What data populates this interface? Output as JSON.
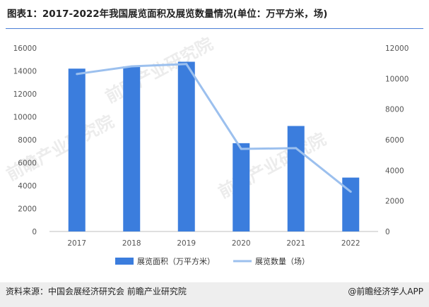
{
  "title": "图表1：2017-2022年我国展览面积及展览数量情况(单位：万平方米，场)",
  "footer": {
    "source": "资料来源：中国会展经济研究会 前瞻产业研究院",
    "brand": "@前瞻经济学人APP"
  },
  "watermark": "前瞻产业研究院",
  "colors": {
    "bar": "#3b7ddd",
    "line": "#9cc0ee",
    "rule": "#4a7fd6",
    "footer_bg": "#eeeeee"
  },
  "chart_data": {
    "type": "bar",
    "categories": [
      "2017",
      "2018",
      "2019",
      "2020",
      "2021",
      "2022"
    ],
    "series": [
      {
        "name": "展览面积（万平方米）",
        "type": "bar",
        "axis": "left",
        "values": [
          14200,
          14400,
          14800,
          7700,
          9200,
          4700
        ]
      },
      {
        "name": "展览数量（场）",
        "type": "line",
        "axis": "right",
        "values": [
          10300,
          10800,
          10950,
          5400,
          5450,
          2600
        ]
      }
    ],
    "y_left": {
      "min": 0,
      "max": 16000,
      "ticks": [
        0,
        2000,
        4000,
        6000,
        8000,
        10000,
        12000,
        14000,
        16000
      ]
    },
    "y_right": {
      "min": 0,
      "max": 12000,
      "ticks": [
        0,
        2000,
        4000,
        6000,
        8000,
        10000,
        12000
      ]
    },
    "grid": false,
    "legend_position": "bottom"
  }
}
